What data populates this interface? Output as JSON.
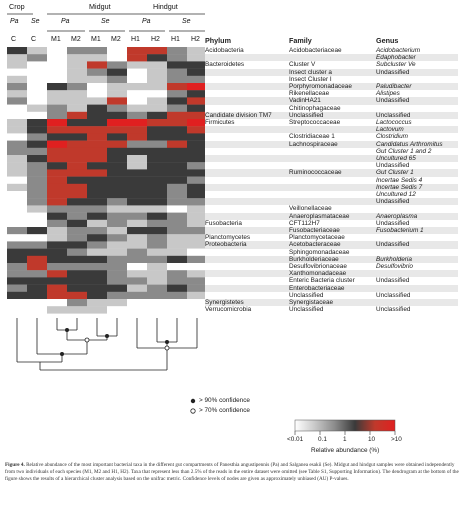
{
  "header": {
    "groups": [
      {
        "name": "Crop",
        "subs": [
          "Pa",
          "Se"
        ]
      },
      {
        "name": "Midgut",
        "subs": [
          "Pa",
          "Se"
        ]
      },
      {
        "name": "Hindgut",
        "subs": [
          "Pa",
          "Se"
        ]
      }
    ],
    "columns": [
      "C",
      "C",
      "M1",
      "M2",
      "M1",
      "M2",
      "H1",
      "H2",
      "H1",
      "H2"
    ],
    "table_headers": {
      "phylum": "Phylum",
      "family": "Family",
      "genus": "Genus"
    }
  },
  "rows": [
    {
      "phylum": "Acidobacteria",
      "family": "Acidobacteriaceae",
      "genus": "Acidobacterium",
      "genus_italic": true
    },
    {
      "phylum": "",
      "family": "",
      "genus": "Edaphobacter",
      "genus_italic": true
    },
    {
      "phylum": "Bacteroidetes",
      "family": "Cluster V",
      "genus": "Subcluster Ve",
      "genus_italic": true
    },
    {
      "phylum": "",
      "family": "Insect cluster a",
      "genus": "Undassified",
      "genus_italic": false
    },
    {
      "phylum": "",
      "family": "Insect Cluster I",
      "genus": "",
      "genus_italic": false
    },
    {
      "phylum": "",
      "family": "Porphyromonadaceae",
      "genus": "Paludibacter",
      "genus_italic": true
    },
    {
      "phylum": "",
      "family": "Rikenellaceae",
      "genus": "Alistipes",
      "genus_italic": true
    },
    {
      "phylum": "",
      "family": "VadinHA21",
      "genus": "Undassified",
      "genus_italic": false
    },
    {
      "phylum": "",
      "family": "Chitinophagaceae",
      "genus": "",
      "genus_italic": false
    },
    {
      "phylum": "Candidate division TM7",
      "family": "Unclassified",
      "genus": "Unclassified",
      "genus_italic": false
    },
    {
      "phylum": "Firmicutes",
      "family": "Streptococcaceae",
      "genus": "Lactococcus",
      "genus_italic": true
    },
    {
      "phylum": "",
      "family": "",
      "genus": "Lactovum",
      "genus_italic": true
    },
    {
      "phylum": "",
      "family": "Clostridiaceae 1",
      "genus": "Clostridium",
      "genus_italic": true
    },
    {
      "phylum": "",
      "family": "Lachnospiraceae",
      "genus": "Candidatus Arthromitus",
      "genus_italic": true
    },
    {
      "phylum": "",
      "family": "",
      "genus": "Gut Cluster 1 and 2",
      "genus_italic": true
    },
    {
      "phylum": "",
      "family": "",
      "genus": "Uncultured 65",
      "genus_italic": true
    },
    {
      "phylum": "",
      "family": "",
      "genus": "Undassified",
      "genus_italic": false
    },
    {
      "phylum": "",
      "family": "Ruminococcaceae",
      "genus": "Gut Cluster 1",
      "genus_italic": true
    },
    {
      "phylum": "",
      "family": "",
      "genus": "Incertae Sedis 4",
      "genus_italic": true
    },
    {
      "phylum": "",
      "family": "",
      "genus": "Incertae Sedis 7",
      "genus_italic": true
    },
    {
      "phylum": "",
      "family": "",
      "genus": "Uncultured 12",
      "genus_italic": true
    },
    {
      "phylum": "",
      "family": "",
      "genus": "Undassified",
      "genus_italic": false
    },
    {
      "phylum": "",
      "family": "Veillonellaceae",
      "genus": "",
      "genus_italic": false
    },
    {
      "phylum": "",
      "family": "Anaeroplasmataceae",
      "genus": "Anaeroplasma",
      "genus_italic": true
    },
    {
      "phylum": "Fusobacteria",
      "family": "CFT112H7",
      "genus": "Undassified",
      "genus_italic": false
    },
    {
      "phylum": "",
      "family": "Fusobacteriaceae",
      "genus": "Fusobacterium 1",
      "genus_italic": true
    },
    {
      "phylum": "Planctomycetes",
      "family": "Planctomycetaceae",
      "genus": "",
      "genus_italic": false
    },
    {
      "phylum": "Proteobacteria",
      "family": "Acetobacteraceae",
      "genus": "Undassified",
      "genus_italic": false
    },
    {
      "phylum": "",
      "family": "Sphingomonadaceae",
      "genus": "",
      "genus_italic": false
    },
    {
      "phylum": "",
      "family": "Burkholderiaceae",
      "genus": "Burkholderia",
      "genus_italic": true
    },
    {
      "phylum": "",
      "family": "Desulfovibrionaceae",
      "genus": "Desulfovibrio",
      "genus_italic": true
    },
    {
      "phylum": "",
      "family": "Xanthomonadaceae",
      "genus": "",
      "genus_italic": false
    },
    {
      "phylum": "",
      "family": "Enteric Bacteria cluster",
      "genus": "Undassified",
      "genus_italic": false
    },
    {
      "phylum": "",
      "family": "Enterobacteriaceae",
      "genus": "",
      "genus_italic": false
    },
    {
      "phylum": "",
      "family": "Unclassified",
      "genus": "Unclassified",
      "genus_italic": false
    },
    {
      "phylum": "Synergistetes",
      "family": "Synergistaceae",
      "genus": "",
      "genus_italic": false
    },
    {
      "phylum": "Verrucomicrobia",
      "family": "Unclassified",
      "genus": "Unclassified",
      "genus_italic": false
    }
  ],
  "heatmap": [
    [
      3,
      1,
      0,
      2,
      2,
      0,
      4,
      4,
      2,
      1
    ],
    [
      1,
      2,
      0,
      1,
      1,
      0,
      4,
      3,
      2,
      1
    ],
    [
      1,
      0,
      0,
      1,
      4,
      2,
      1,
      1,
      3,
      3
    ],
    [
      0,
      0,
      0,
      1,
      2,
      3,
      0,
      1,
      2,
      3
    ],
    [
      1,
      0,
      0,
      1,
      1,
      2,
      0,
      1,
      2,
      2
    ],
    [
      2,
      0,
      3,
      2,
      0,
      1,
      1,
      1,
      4,
      5
    ],
    [
      1,
      0,
      1,
      1,
      0,
      1,
      0,
      0,
      2,
      3
    ],
    [
      2,
      0,
      1,
      1,
      1,
      4,
      0,
      1,
      3,
      4
    ],
    [
      0,
      1,
      2,
      1,
      3,
      2,
      1,
      1,
      2,
      3
    ],
    [
      0,
      0,
      2,
      4,
      3,
      3,
      2,
      3,
      4,
      4
    ],
    [
      1,
      3,
      5,
      3,
      3,
      5,
      5,
      4,
      4,
      5
    ],
    [
      1,
      3,
      4,
      4,
      4,
      4,
      4,
      3,
      3,
      4
    ],
    [
      0,
      2,
      3,
      3,
      4,
      3,
      4,
      3,
      3,
      3
    ],
    [
      2,
      3,
      5,
      4,
      4,
      4,
      2,
      2,
      4,
      3
    ],
    [
      2,
      2,
      4,
      4,
      4,
      3,
      3,
      3,
      3,
      3
    ],
    [
      1,
      3,
      4,
      4,
      4,
      3,
      1,
      3,
      3,
      3
    ],
    [
      1,
      2,
      3,
      4,
      3,
      3,
      1,
      3,
      3,
      2
    ],
    [
      1,
      2,
      4,
      4,
      4,
      3,
      3,
      3,
      3,
      3
    ],
    [
      0,
      2,
      4,
      3,
      3,
      3,
      3,
      3,
      3,
      2
    ],
    [
      1,
      2,
      4,
      4,
      3,
      3,
      3,
      3,
      2,
      3
    ],
    [
      0,
      2,
      4,
      4,
      3,
      3,
      3,
      3,
      2,
      3
    ],
    [
      0,
      2,
      4,
      3,
      3,
      2,
      3,
      3,
      2,
      2
    ],
    [
      0,
      1,
      2,
      2,
      2,
      1,
      1,
      1,
      0,
      1
    ],
    [
      0,
      0,
      3,
      2,
      3,
      2,
      2,
      3,
      2,
      1
    ],
    [
      0,
      0,
      2,
      3,
      1,
      2,
      1,
      2,
      2,
      1
    ],
    [
      2,
      3,
      1,
      2,
      2,
      1,
      3,
      3,
      2,
      2
    ],
    [
      0,
      0,
      1,
      2,
      3,
      2,
      1,
      2,
      1,
      1
    ],
    [
      2,
      2,
      3,
      3,
      2,
      1,
      1,
      2,
      1,
      1
    ],
    [
      3,
      3,
      3,
      2,
      1,
      1,
      2,
      1,
      1,
      0
    ],
    [
      3,
      4,
      3,
      3,
      3,
      2,
      2,
      2,
      3,
      2
    ],
    [
      2,
      4,
      2,
      2,
      2,
      2,
      0,
      1,
      0,
      0
    ],
    [
      2,
      2,
      4,
      3,
      3,
      2,
      1,
      1,
      2,
      1
    ],
    [
      3,
      3,
      3,
      3,
      3,
      2,
      2,
      1,
      2,
      2
    ],
    [
      2,
      3,
      4,
      3,
      3,
      3,
      1,
      2,
      3,
      2
    ],
    [
      3,
      3,
      4,
      4,
      3,
      2,
      2,
      2,
      2,
      1
    ],
    [
      0,
      0,
      0,
      2,
      1,
      1,
      0,
      0,
      0,
      0
    ],
    [
      0,
      0,
      1,
      1,
      1,
      0,
      0,
      0,
      0,
      0
    ]
  ],
  "colors": {
    "scale": [
      "#ffffff",
      "#c8c8c8",
      "#8a8a8a",
      "#3a3a3a",
      "#c0392b",
      "#e02020"
    ],
    "shade": "#e8e8e8"
  },
  "dendrogram": {
    "legend": {
      "filled_label": "> 90% confidence",
      "open_label": "> 70% confidence"
    }
  },
  "legend": {
    "ticks": [
      "<0.01",
      "0.1",
      "1",
      "10",
      ">10"
    ],
    "title": "Relative abundance (%)"
  },
  "caption": {
    "label": "Figure 4.",
    "text": " Relative abundance of the most important bacterial taxa in the different gut compartments of Panesthia angustipennis (Pa) and Salganea esakii (Se). Midgut and hindgut samples were obtained independently from two individuals of each species (M1, M2 and H1, H2). Taxa that represent less than 2.5% of the reads in the entire dataset were omitted (see Table S1, Supporting Information). The dendrogram at the bottom of the figure shows the results of a hierarchical cluster analysis based on the unifrac metric. Confidence levels of nodes are given as approximately unbiased (AU) P-values."
  }
}
